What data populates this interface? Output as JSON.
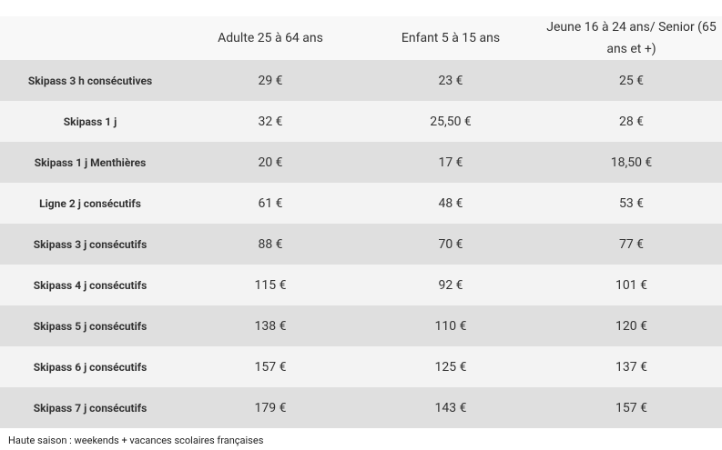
{
  "table": {
    "header": [
      "",
      "Adulte 25 à 64 ans",
      "Enfant 5 à 15 ans",
      "Jeune 16 à 24 ans/ Senior (65 ans et +)"
    ],
    "rows": [
      [
        "Skipass 3 h consécutives",
        "29 €",
        "23 €",
        "25 €"
      ],
      [
        "Skipass 1 j",
        "32 €",
        "25,50 €",
        "28 €"
      ],
      [
        "Skipass 1 j Menthières",
        "20 €",
        "17 €",
        "18,50 €"
      ],
      [
        "Ligne 2 j consécutifs",
        "61 €",
        "48 €",
        "53 €"
      ],
      [
        "Skipass 3 j consécutifs",
        "88 €",
        "70 €",
        "77 €"
      ],
      [
        "Skipass 4 j consécutifs",
        "115 €",
        "92 €",
        "101 €"
      ],
      [
        "Skipass 5 j consécutifs",
        "138 €",
        "110 €",
        "120 €"
      ],
      [
        "Skipass 6 j consécutifs",
        "157 €",
        "125 €",
        "137 €"
      ],
      [
        "Skipass 7 j consécutifs",
        "179 €",
        "143 €",
        "157 €"
      ]
    ]
  },
  "footnote": "Haute saison : weekends + vacances scolaires françaises"
}
